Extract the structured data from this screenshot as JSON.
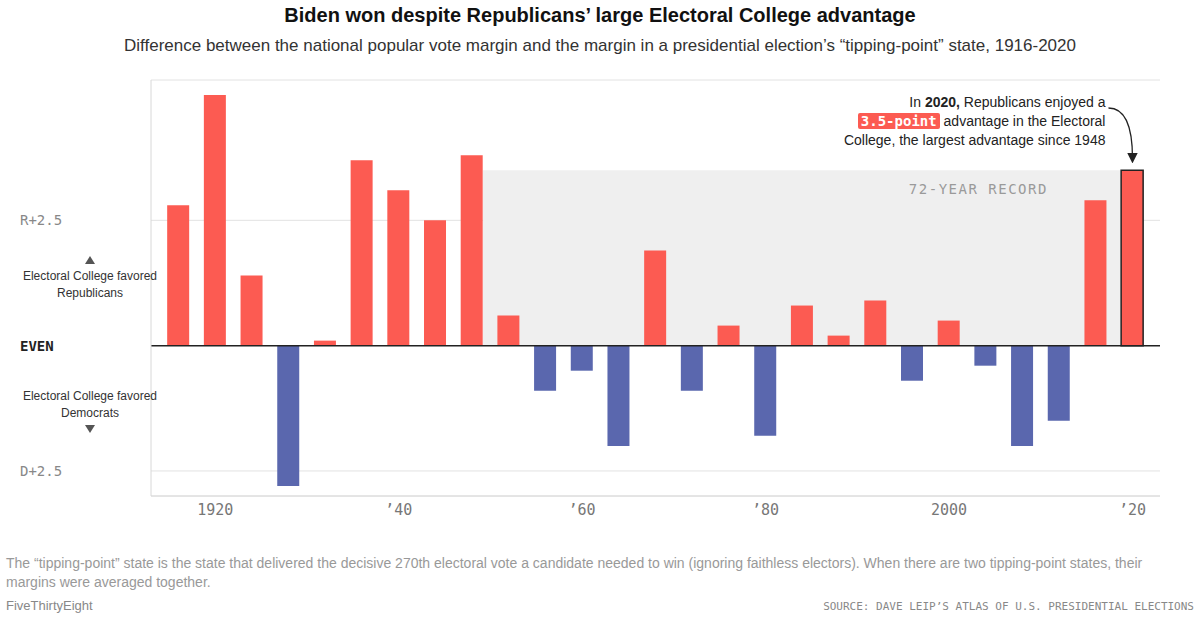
{
  "chart_data": {
    "type": "bar",
    "title": "Biden won despite Republicans’ large Electoral College advantage",
    "subtitle": "Difference between the national popular vote margin and the margin in a presidential election’s “tipping-point” state, 1916-2020",
    "x": [
      1916,
      1920,
      1924,
      1928,
      1932,
      1936,
      1940,
      1944,
      1948,
      1952,
      1956,
      1960,
      1964,
      1968,
      1972,
      1976,
      1980,
      1984,
      1988,
      1992,
      1996,
      2000,
      2004,
      2008,
      2012,
      2016,
      2020
    ],
    "values": [
      2.8,
      5.0,
      1.4,
      -2.8,
      0.1,
      3.7,
      3.1,
      2.5,
      3.8,
      0.6,
      -0.9,
      -0.5,
      -2.0,
      1.9,
      -0.9,
      0.4,
      -1.8,
      0.8,
      0.2,
      0.9,
      -0.7,
      0.5,
      -0.4,
      -2.0,
      -1.5,
      2.9,
      3.5
    ],
    "colors": [
      "#fc5b52",
      "#fc5b52",
      "#fc5b52",
      "#5a67ae",
      "#fc5b52",
      "#fc5b52",
      "#fc5b52",
      "#fc5b52",
      "#fc5b52",
      "#fc5b52",
      "#5a67ae",
      "#5a67ae",
      "#5a67ae",
      "#fc5b52",
      "#5a67ae",
      "#fc5b52",
      "#5a67ae",
      "#fc5b52",
      "#fc5b52",
      "#fc5b52",
      "#5a67ae",
      "#fc5b52",
      "#5a67ae",
      "#5a67ae",
      "#5a67ae",
      "#fc5b52",
      "#fc5b52"
    ],
    "xlim": [
      1913,
      2023
    ],
    "xticks": [
      1920,
      {
        "value": 1940,
        "label": "’40"
      },
      {
        "value": 1960,
        "label": "’60"
      },
      {
        "value": 1980,
        "label": "’80"
      },
      2000,
      {
        "value": 2020,
        "label": "’20"
      }
    ],
    "ylim": [
      -3,
      5.3
    ],
    "yticks": [
      {
        "value": -2.5,
        "label": "D+2.5"
      },
      {
        "value": 0,
        "label": "EVEN"
      },
      {
        "value": 2.5,
        "label": "R+2.5"
      }
    ],
    "grid": true,
    "annotations": {
      "record": "72-YEAR RECORD",
      "note": [
        "In 2020, Republicans enjoyed a",
        "3.5-point advantage in the Electoral",
        "College, the largest advantage since 1948"
      ],
      "up": "Electoral College favored Republicans",
      "down": "Electoral College favored Democrats"
    },
    "footnote": "The “tipping-point” state is the state that delivered the decisive 270th electoral vote a candidate needed to win (ignoring faithless electors). When there are two tipping-point states, their margins were averaged together.",
    "credit": "FiveThirtyEight",
    "source": "SOURCE: DAVE LEIP’S ATLAS OF U.S. PRESIDENTIAL ELECTIONS"
  }
}
